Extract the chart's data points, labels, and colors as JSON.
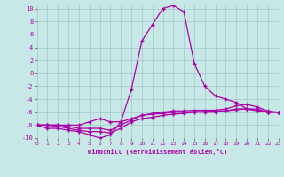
{
  "xlabel": "Windchill (Refroidissement éolien,°C)",
  "xlim": [
    0,
    23
  ],
  "ylim": [
    -10,
    10.5
  ],
  "xticks": [
    0,
    1,
    2,
    3,
    4,
    5,
    6,
    7,
    8,
    9,
    10,
    11,
    12,
    13,
    14,
    15,
    16,
    17,
    18,
    19,
    20,
    21,
    22,
    23
  ],
  "yticks": [
    -10,
    -8,
    -6,
    -4,
    -2,
    0,
    2,
    4,
    6,
    8,
    10
  ],
  "bg_color": "#c8e8e8",
  "grid_color": "#a0c8c8",
  "line_color": "#aa00aa",
  "main_curve": [
    -8,
    -8.5,
    -8.5,
    -8.8,
    -9.0,
    -9.5,
    -10.0,
    -9.5,
    -7.5,
    -2.5,
    5.0,
    7.5,
    10.0,
    10.5,
    9.5,
    1.5,
    -2.0,
    -3.5,
    -4.0,
    -4.5,
    -5.5,
    -5.5,
    -6.0,
    -6.0
  ],
  "curve2": [
    -8,
    -8,
    -8,
    -8,
    -8,
    -7.5,
    -7.0,
    -7.5,
    -7.5,
    -7.0,
    -6.5,
    -6.2,
    -6.0,
    -5.8,
    -5.8,
    -5.7,
    -5.7,
    -5.7,
    -5.5,
    -5.0,
    -4.8,
    -5.2,
    -5.8,
    -6.0
  ],
  "curve3": [
    -8,
    -8,
    -8,
    -8.2,
    -8.5,
    -8.5,
    -8.5,
    -8.8,
    -8.0,
    -7.2,
    -6.5,
    -6.3,
    -6.2,
    -6.0,
    -6.0,
    -5.9,
    -5.9,
    -5.8,
    -5.8,
    -5.6,
    -5.5,
    -5.7,
    -6.0,
    -6.0
  ],
  "curve4": [
    -8,
    -8,
    -8.2,
    -8.5,
    -8.8,
    -9.0,
    -9.0,
    -9.2,
    -8.5,
    -7.5,
    -7.0,
    -6.8,
    -6.5,
    -6.3,
    -6.2,
    -6.0,
    -6.0,
    -6.0,
    -5.8,
    -5.5,
    -5.5,
    -5.8,
    -6.0,
    -6.0
  ]
}
